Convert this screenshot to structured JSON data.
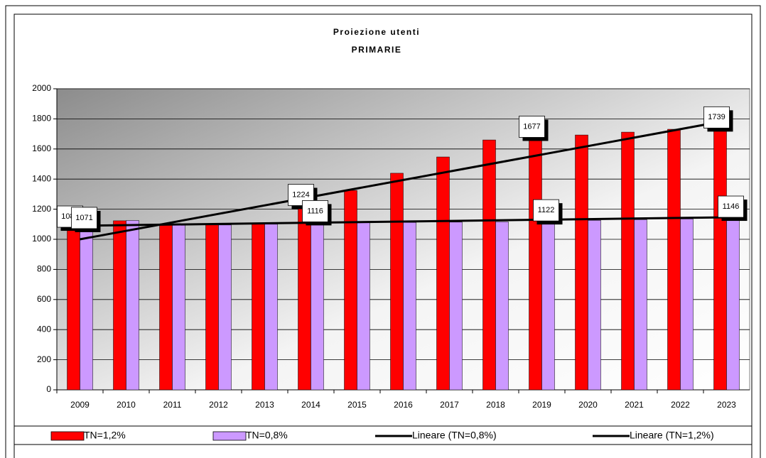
{
  "chart_data": {
    "type": "bar",
    "title": "Proiezione utenti",
    "subtitle": "PRIMARIE",
    "categories": [
      "2009",
      "2010",
      "2011",
      "2012",
      "2013",
      "2014",
      "2015",
      "2016",
      "2017",
      "2018",
      "2019",
      "2020",
      "2021",
      "2022",
      "2023"
    ],
    "series": [
      {
        "name": "TN=1,2%",
        "color": "#ff0000",
        "values": [
          1080,
          1123,
          1100,
          1095,
          1100,
          1224,
          1325,
          1439,
          1547,
          1660,
          1677,
          1693,
          1712,
          1731,
          1739
        ],
        "value_labels": [
          "1080",
          null,
          null,
          null,
          null,
          "1224",
          null,
          null,
          null,
          null,
          "1677",
          null,
          null,
          null,
          "1739"
        ]
      },
      {
        "name": "TN=0,8%",
        "color": "#cc99ff",
        "values": [
          1071,
          1125,
          1100,
          1095,
          1100,
          1116,
          1110,
          1112,
          1114,
          1116,
          1122,
          1126,
          1130,
          1135,
          1146
        ],
        "value_labels": [
          "1071",
          null,
          null,
          null,
          null,
          "1116",
          null,
          null,
          null,
          null,
          "1122",
          null,
          null,
          null,
          "1146"
        ]
      }
    ],
    "trendlines": [
      {
        "name": "Lineare (TN=0,8%)",
        "color": "#000000",
        "values": [
          1090,
          1146
        ]
      },
      {
        "name": "Lineare (TN=1,2%)",
        "color": "#000000",
        "values": [
          1000,
          1788
        ]
      }
    ],
    "ylim": [
      0,
      2000
    ],
    "yticks": [
      0,
      200,
      400,
      600,
      800,
      1000,
      1200,
      1400,
      1600,
      1800,
      2000
    ],
    "grid": true
  }
}
